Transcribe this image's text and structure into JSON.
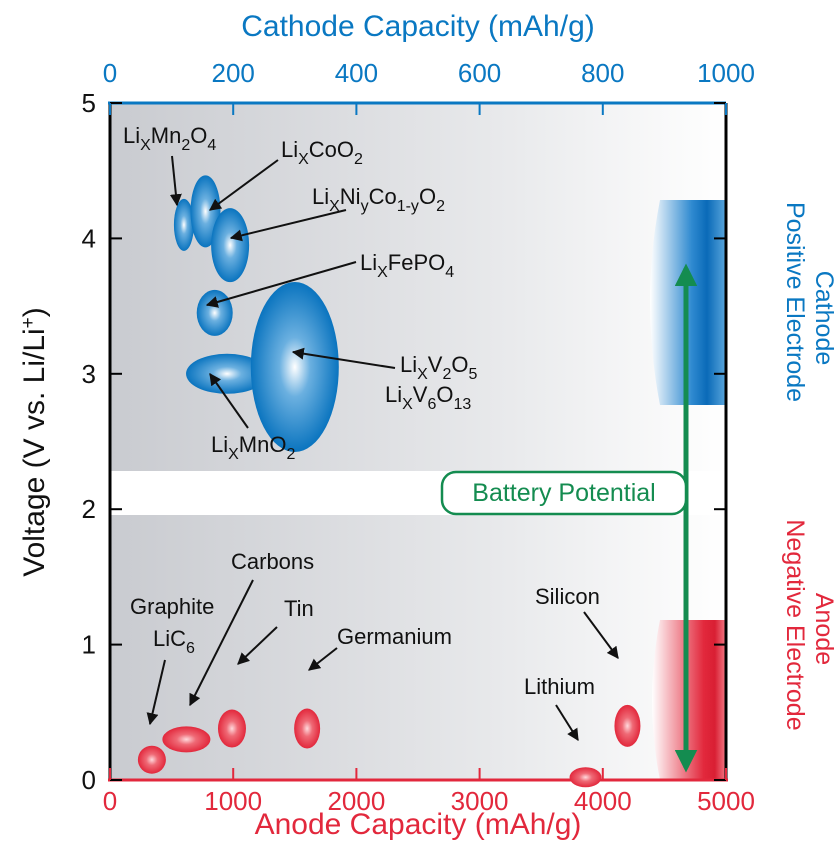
{
  "chart_data": {
    "type": "scatter",
    "title_top": "Cathode Capacity (mAh/g)",
    "xlabel": "Anode Capacity (mAh/g)",
    "ylabel": "Voltage (V vs. Li/Li+)",
    "xlim_anode": [
      0,
      5000
    ],
    "xlim_cathode": [
      0,
      1000
    ],
    "ylim": [
      0,
      5
    ],
    "x_ticks_anode": [
      "0",
      "1000",
      "2000",
      "3000",
      "4000",
      "5000"
    ],
    "x_ticks_cathode": [
      "0",
      "200",
      "400",
      "600",
      "800",
      "1000"
    ],
    "y_ticks": [
      "0",
      "1",
      "2",
      "3",
      "4",
      "5"
    ],
    "grid": false,
    "colors": {
      "cathode": "#0a78c2",
      "anode": "#e2283c",
      "battery": "#148c50"
    },
    "battery_label": "Battery Potential",
    "side_labels": {
      "cathode_title": "Cathode",
      "cathode_sub": "Positive Electrode",
      "anode_title": "Anode",
      "anode_sub": "Negative Electrode"
    },
    "series": [
      {
        "name": "cathode",
        "points": [
          {
            "label": "LixMn2O4",
            "capacity": 120,
            "voltage": 4.1
          },
          {
            "label": "LixCoO2",
            "capacity": 155,
            "voltage": 4.2
          },
          {
            "label": "LixNiyCo1-yO2",
            "capacity": 195,
            "voltage": 3.95
          },
          {
            "label": "LixFePO4",
            "capacity": 170,
            "voltage": 3.45
          },
          {
            "label": "LixMnO2",
            "capacity": 190,
            "voltage": 3.0
          },
          {
            "label": "LixV2O5 / LixV6O13",
            "capacity": 300,
            "voltage": 3.05
          }
        ]
      },
      {
        "name": "anode",
        "points": [
          {
            "label": "Graphite LiC6",
            "capacity": 340,
            "voltage": 0.15
          },
          {
            "label": "Carbons",
            "capacity": 620,
            "voltage": 0.3
          },
          {
            "label": "Tin",
            "capacity": 990,
            "voltage": 0.38
          },
          {
            "label": "Germanium",
            "capacity": 1600,
            "voltage": 0.38
          },
          {
            "label": "Lithium",
            "capacity": 3860,
            "voltage": 0.02
          },
          {
            "label": "Silicon",
            "capacity": 4200,
            "voltage": 0.4
          }
        ]
      }
    ]
  }
}
